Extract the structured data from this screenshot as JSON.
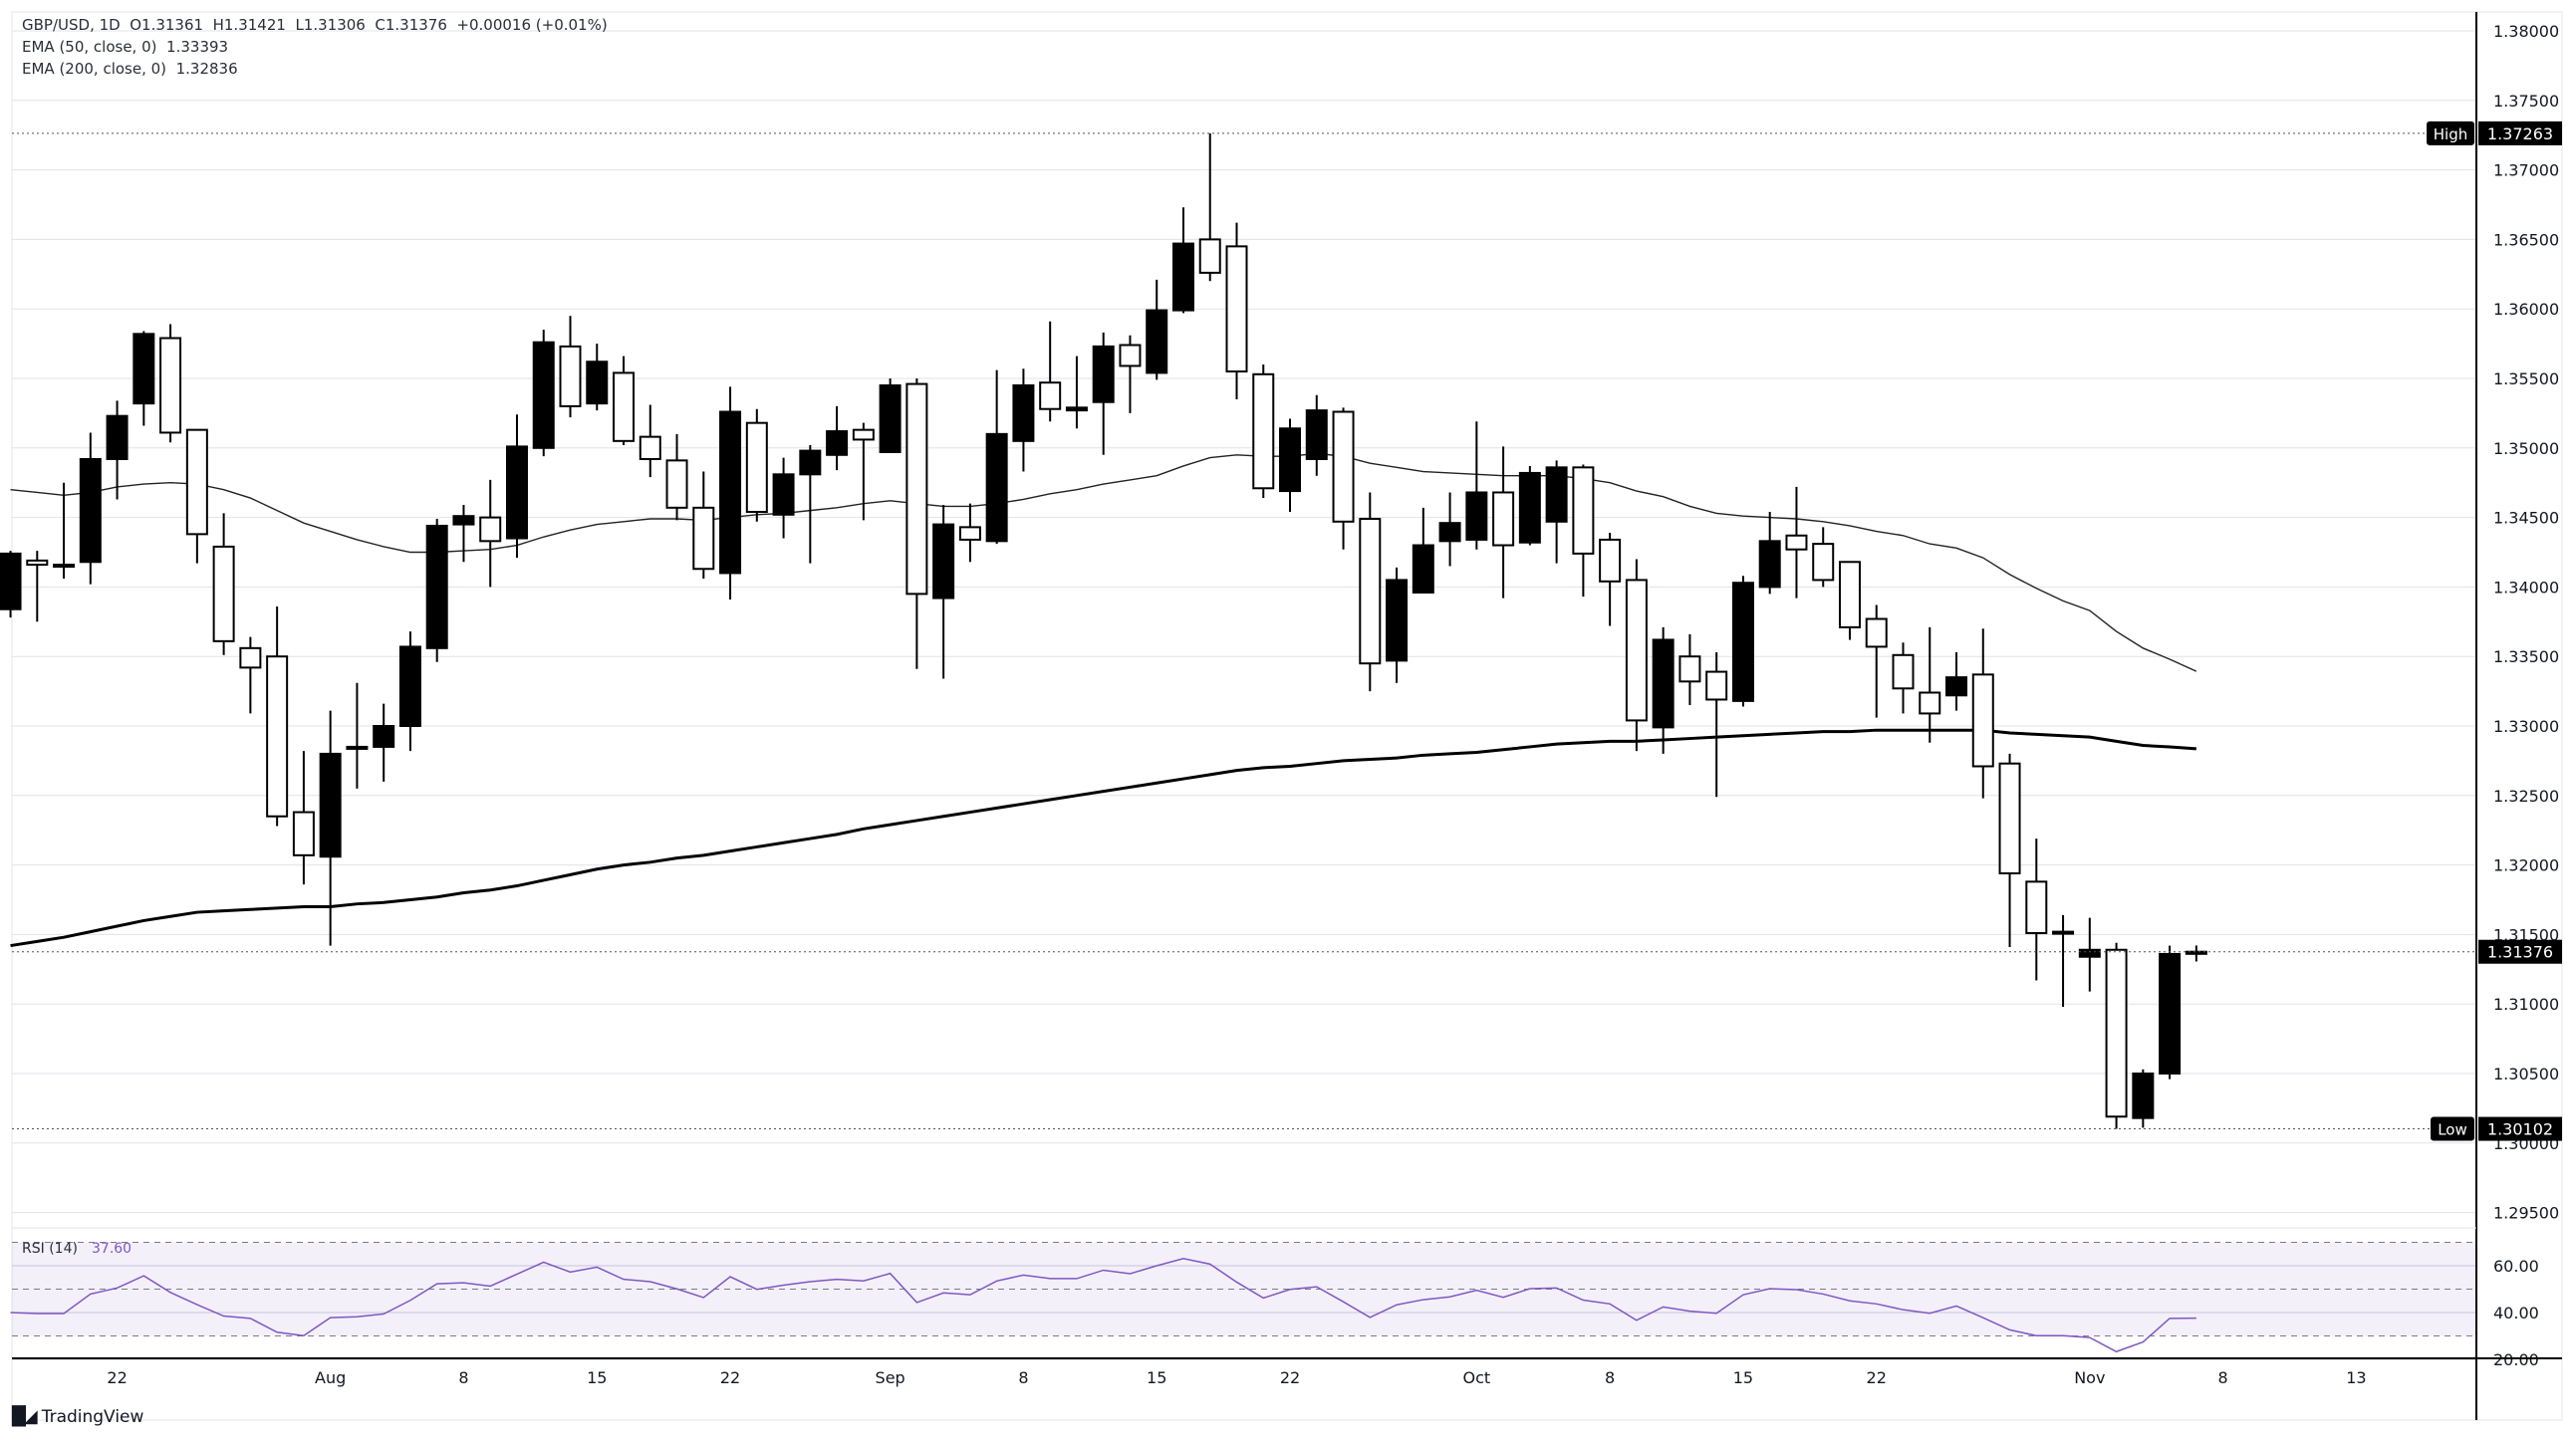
{
  "header": {
    "symbol_line": "GBP/USD, 1D  O1.31361  H1.31421  L1.31306  C1.31376  +0.00016 (+0.01%)",
    "ema50_label": "EMA (50, close, 0)",
    "ema50_value": "1.33393",
    "ema200_label": "EMA (200, close, 0)",
    "ema200_value": "1.32836"
  },
  "rsi": {
    "label": "RSI (14)",
    "value": "37.60",
    "color": "#7e57c2",
    "ticks": [
      "60.00",
      "40.00",
      "20.00"
    ],
    "values": [
      40.0,
      39.6,
      39.6,
      47.9,
      50.5,
      55.7,
      48.6,
      43.4,
      38.5,
      37.5,
      31.6,
      30.1,
      37.8,
      38.2,
      39.4,
      45.2,
      52.3,
      52.7,
      51.3,
      56.4,
      61.5,
      57.3,
      59.4,
      54.2,
      53.2,
      50.1,
      46.4,
      55.3,
      49.9,
      51.7,
      53.2,
      54.2,
      53.5,
      56.7,
      44.3,
      48.4,
      47.6,
      53.5,
      56.0,
      54.5,
      54.5,
      58.1,
      56.6,
      60.0,
      63.1,
      60.7,
      53.0,
      46.2,
      49.9,
      51.0,
      44.6,
      37.9,
      43.3,
      45.5,
      46.7,
      49.5,
      46.5,
      50.2,
      50.5,
      45.3,
      43.7,
      36.7,
      42.4,
      40.6,
      39.7,
      47.6,
      50.2,
      49.8,
      47.9,
      45.0,
      43.7,
      41.2,
      39.7,
      42.8,
      37.8,
      32.6,
      30.1,
      30.1,
      29.3,
      23.3,
      27.4,
      37.5,
      37.6
    ]
  },
  "markers": {
    "high_label": "High",
    "high_value": "1.37263",
    "low_label": "Low",
    "low_value": "1.30102",
    "last_value": "1.31376"
  },
  "footer": {
    "brand": "TradingView"
  },
  "chart_data": {
    "type": "candlestick",
    "title": "GBP/USD, 1D",
    "ylim": [
      1.29,
      1.3825
    ],
    "y_ticks": [
      "1.38000",
      "1.37500",
      "1.37000",
      "1.36500",
      "1.36000",
      "1.35500",
      "1.35000",
      "1.34500",
      "1.34000",
      "1.33500",
      "1.33000",
      "1.32500",
      "1.32000",
      "1.31500",
      "1.31000",
      "1.30500",
      "1.30000",
      "1.29500"
    ],
    "x_ticks": [
      {
        "label": "22",
        "bar": 5
      },
      {
        "label": "Aug",
        "bar": 13
      },
      {
        "label": "8",
        "bar": 18
      },
      {
        "label": "15",
        "bar": 23
      },
      {
        "label": "22",
        "bar": 28
      },
      {
        "label": "Sep",
        "bar": 34
      },
      {
        "label": "8",
        "bar": 39
      },
      {
        "label": "15",
        "bar": 44
      },
      {
        "label": "22",
        "bar": 49
      },
      {
        "label": "Oct",
        "bar": 56
      },
      {
        "label": "8",
        "bar": 61
      },
      {
        "label": "15",
        "bar": 66
      },
      {
        "label": "22",
        "bar": 71
      },
      {
        "label": "Nov",
        "bar": 79
      },
      {
        "label": "8",
        "bar": 84
      },
      {
        "label": "13",
        "bar": 89
      }
    ],
    "up_color": "#000000",
    "down_color": "#ffffff",
    "ohlc": [
      [
        1.3384,
        1.3426,
        1.3378,
        1.3424
      ],
      [
        1.3419,
        1.3426,
        1.3375,
        1.3416
      ],
      [
        1.3415,
        1.3475,
        1.3406,
        1.3416
      ],
      [
        1.3418,
        1.3511,
        1.3402,
        1.3492
      ],
      [
        1.3492,
        1.3534,
        1.3463,
        1.3523
      ],
      [
        1.3532,
        1.3584,
        1.3516,
        1.3582
      ],
      [
        1.3579,
        1.3589,
        1.3504,
        1.3511
      ],
      [
        1.3513,
        1.3513,
        1.3417,
        1.3438
      ],
      [
        1.3429,
        1.3453,
        1.3351,
        1.3361
      ],
      [
        1.3356,
        1.3364,
        1.3309,
        1.3342
      ],
      [
        1.335,
        1.3386,
        1.3228,
        1.3235
      ],
      [
        1.3238,
        1.3282,
        1.3186,
        1.3207
      ],
      [
        1.3206,
        1.3311,
        1.3142,
        1.328
      ],
      [
        1.3284,
        1.3331,
        1.3255,
        1.3285
      ],
      [
        1.3285,
        1.3316,
        1.326,
        1.33
      ],
      [
        1.33,
        1.3368,
        1.3282,
        1.3357
      ],
      [
        1.3356,
        1.3449,
        1.3346,
        1.3444
      ],
      [
        1.3445,
        1.3459,
        1.3418,
        1.3451
      ],
      [
        1.345,
        1.3477,
        1.34,
        1.3433
      ],
      [
        1.3435,
        1.3524,
        1.3421,
        1.3501
      ],
      [
        1.35,
        1.3585,
        1.3494,
        1.3576
      ],
      [
        1.3573,
        1.3595,
        1.3522,
        1.353
      ],
      [
        1.3532,
        1.3575,
        1.3527,
        1.3562
      ],
      [
        1.3554,
        1.3566,
        1.3502,
        1.3505
      ],
      [
        1.3508,
        1.3531,
        1.3479,
        1.3492
      ],
      [
        1.3491,
        1.351,
        1.3448,
        1.3457
      ],
      [
        1.3457,
        1.3483,
        1.3406,
        1.3413
      ],
      [
        1.341,
        1.3544,
        1.3391,
        1.3526
      ],
      [
        1.3518,
        1.3528,
        1.3447,
        1.3454
      ],
      [
        1.3452,
        1.3493,
        1.3435,
        1.3481
      ],
      [
        1.3481,
        1.3502,
        1.3417,
        1.3498
      ],
      [
        1.3495,
        1.353,
        1.3484,
        1.3512
      ],
      [
        1.3513,
        1.3518,
        1.3448,
        1.3506
      ],
      [
        1.3497,
        1.355,
        1.3497,
        1.3545
      ],
      [
        1.3546,
        1.355,
        1.3341,
        1.3395
      ],
      [
        1.3392,
        1.3459,
        1.3334,
        1.3445
      ],
      [
        1.3443,
        1.346,
        1.3418,
        1.3434
      ],
      [
        1.3433,
        1.3556,
        1.3431,
        1.351
      ],
      [
        1.3505,
        1.3557,
        1.3483,
        1.3545
      ],
      [
        1.3547,
        1.3591,
        1.3519,
        1.3528
      ],
      [
        1.3527,
        1.3566,
        1.3514,
        1.3529
      ],
      [
        1.3533,
        1.3583,
        1.3495,
        1.3573
      ],
      [
        1.3574,
        1.3581,
        1.3525,
        1.3559
      ],
      [
        1.3554,
        1.3621,
        1.3549,
        1.3599
      ],
      [
        1.3599,
        1.3673,
        1.3597,
        1.3647
      ],
      [
        1.365,
        1.37263,
        1.362,
        1.3626
      ],
      [
        1.3645,
        1.3662,
        1.3535,
        1.3555
      ],
      [
        1.3553,
        1.356,
        1.3464,
        1.3471
      ],
      [
        1.3469,
        1.3521,
        1.3454,
        1.3514
      ],
      [
        1.3492,
        1.3538,
        1.348,
        1.3527
      ],
      [
        1.3526,
        1.3529,
        1.3427,
        1.3447
      ],
      [
        1.3449,
        1.3468,
        1.3325,
        1.3345
      ],
      [
        1.3347,
        1.3414,
        1.3331,
        1.3405
      ],
      [
        1.3396,
        1.3457,
        1.3396,
        1.343
      ],
      [
        1.3433,
        1.3468,
        1.3415,
        1.3446
      ],
      [
        1.3434,
        1.3519,
        1.3427,
        1.3468
      ],
      [
        1.3468,
        1.3501,
        1.3392,
        1.343
      ],
      [
        1.3432,
        1.3487,
        1.343,
        1.3482
      ],
      [
        1.3447,
        1.3491,
        1.3417,
        1.3486
      ],
      [
        1.3486,
        1.3488,
        1.3393,
        1.3424
      ],
      [
        1.3434,
        1.3439,
        1.3372,
        1.3404
      ],
      [
        1.3405,
        1.342,
        1.3282,
        1.3304
      ],
      [
        1.3299,
        1.3371,
        1.328,
        1.3362
      ],
      [
        1.335,
        1.3366,
        1.3315,
        1.3332
      ],
      [
        1.3339,
        1.3353,
        1.3249,
        1.3319
      ],
      [
        1.3318,
        1.3408,
        1.3314,
        1.3403
      ],
      [
        1.34,
        1.3454,
        1.3395,
        1.3433
      ],
      [
        1.3437,
        1.3472,
        1.3392,
        1.3427
      ],
      [
        1.3431,
        1.3443,
        1.34,
        1.3405
      ],
      [
        1.3418,
        1.3418,
        1.3362,
        1.3371
      ],
      [
        1.3377,
        1.3387,
        1.3306,
        1.3357
      ],
      [
        1.3351,
        1.336,
        1.3309,
        1.3327
      ],
      [
        1.3324,
        1.3371,
        1.3288,
        1.3309
      ],
      [
        1.3322,
        1.3353,
        1.3311,
        1.3335
      ],
      [
        1.3337,
        1.337,
        1.3248,
        1.3271
      ],
      [
        1.3273,
        1.328,
        1.3141,
        1.3194
      ],
      [
        1.3188,
        1.3219,
        1.3117,
        1.3151
      ],
      [
        1.3152,
        1.3164,
        1.3098,
        1.3151
      ],
      [
        1.3134,
        1.3162,
        1.3109,
        1.3139
      ],
      [
        1.3139,
        1.3144,
        1.30102,
        1.3019
      ],
      [
        1.3018,
        1.3053,
        1.3011,
        1.305
      ],
      [
        1.305,
        1.3142,
        1.3046,
        1.3136
      ],
      [
        1.31361,
        1.31421,
        1.31306,
        1.31376
      ]
    ],
    "series": [
      {
        "name": "EMA (50, close, 0)",
        "values": [
          1.347,
          1.3468,
          1.3466,
          1.3468,
          1.3472,
          1.3474,
          1.3475,
          1.3474,
          1.347,
          1.3464,
          1.3455,
          1.3446,
          1.344,
          1.3434,
          1.3429,
          1.3425,
          1.3425,
          1.3426,
          1.3427,
          1.343,
          1.3436,
          1.3441,
          1.3445,
          1.3447,
          1.3449,
          1.3449,
          1.3448,
          1.345,
          1.3452,
          1.3453,
          1.3455,
          1.3457,
          1.346,
          1.3462,
          1.346,
          1.3458,
          1.3458,
          1.346,
          1.3463,
          1.3467,
          1.347,
          1.3474,
          1.3477,
          1.348,
          1.3487,
          1.3493,
          1.3495,
          1.3494,
          1.3494,
          1.3496,
          1.3494,
          1.3489,
          1.3486,
          1.3483,
          1.3482,
          1.3481,
          1.348,
          1.348,
          1.348,
          1.3478,
          1.3475,
          1.3469,
          1.3465,
          1.3458,
          1.3453,
          1.3451,
          1.345,
          1.3449,
          1.3447,
          1.3444,
          1.344,
          1.3437,
          1.3431,
          1.3428,
          1.3421,
          1.3409,
          1.3399,
          1.339,
          1.3383,
          1.3368,
          1.3356,
          1.3348,
          1.33393
        ]
      },
      {
        "name": "EMA (200, close, 0)",
        "values": [
          1.3142,
          1.3145,
          1.3148,
          1.3152,
          1.3156,
          1.316,
          1.3163,
          1.3166,
          1.3167,
          1.3168,
          1.3169,
          1.317,
          1.317,
          1.3172,
          1.3173,
          1.3175,
          1.3177,
          1.318,
          1.3182,
          1.3185,
          1.3189,
          1.3193,
          1.3197,
          1.32,
          1.3202,
          1.3205,
          1.3207,
          1.321,
          1.3213,
          1.3216,
          1.3219,
          1.3222,
          1.3226,
          1.3229,
          1.3232,
          1.3235,
          1.3238,
          1.3241,
          1.3244,
          1.3247,
          1.325,
          1.3253,
          1.3256,
          1.3259,
          1.3262,
          1.3265,
          1.3268,
          1.327,
          1.3271,
          1.3273,
          1.3275,
          1.3276,
          1.3277,
          1.3279,
          1.328,
          1.3281,
          1.3283,
          1.3285,
          1.3287,
          1.3288,
          1.3289,
          1.3289,
          1.329,
          1.3291,
          1.3292,
          1.3293,
          1.3294,
          1.3295,
          1.3296,
          1.3296,
          1.3297,
          1.3297,
          1.3297,
          1.3297,
          1.3297,
          1.3295,
          1.3294,
          1.3293,
          1.3292,
          1.3289,
          1.3286,
          1.3285,
          1.32836
        ]
      }
    ]
  }
}
